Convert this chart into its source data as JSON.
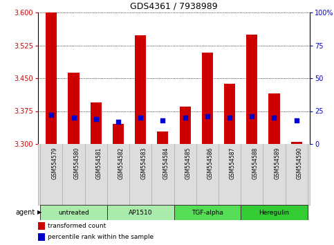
{
  "title": "GDS4361 / 7938989",
  "samples": [
    "GSM554579",
    "GSM554580",
    "GSM554581",
    "GSM554582",
    "GSM554583",
    "GSM554584",
    "GSM554585",
    "GSM554586",
    "GSM554587",
    "GSM554588",
    "GSM554589",
    "GSM554590"
  ],
  "transformed_counts": [
    3.6,
    3.462,
    3.395,
    3.345,
    3.548,
    3.328,
    3.385,
    3.508,
    3.438,
    3.55,
    3.415,
    3.305
  ],
  "percentile_ranks": [
    22,
    20,
    19,
    17,
    20,
    18,
    20,
    21,
    20,
    21,
    20,
    18
  ],
  "ylim_left": [
    3.3,
    3.6
  ],
  "ylim_right": [
    0,
    100
  ],
  "yticks_left": [
    3.3,
    3.375,
    3.45,
    3.525,
    3.6
  ],
  "yticks_right": [
    0,
    25,
    50,
    75,
    100
  ],
  "bar_color_red": "#cc0000",
  "bar_color_blue": "#0000cc",
  "groups": [
    {
      "label": "untreated",
      "indices": [
        0,
        1,
        2
      ],
      "color": "#aaeaaa"
    },
    {
      "label": "AP1510",
      "indices": [
        3,
        4,
        5
      ],
      "color": "#aaeaaa"
    },
    {
      "label": "TGF-alpha",
      "indices": [
        6,
        7,
        8
      ],
      "color": "#55dd55"
    },
    {
      "label": "Heregulin",
      "indices": [
        9,
        10,
        11
      ],
      "color": "#33cc33"
    }
  ],
  "xlabel_group": "agent",
  "legend_red": "transformed count",
  "legend_blue": "percentile rank within the sample",
  "tick_color_left": "#cc0000",
  "tick_color_right": "#0000cc",
  "bar_width": 0.5,
  "base_value": 3.3,
  "gray_bg": "#dddddd",
  "white_bg": "#ffffff"
}
